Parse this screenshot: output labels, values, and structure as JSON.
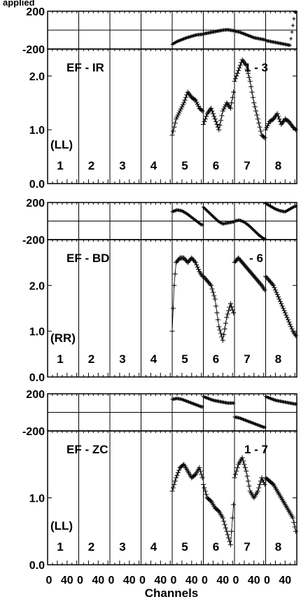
{
  "header": {
    "title_fragment": "applied"
  },
  "x_axis": {
    "label": "Channels",
    "tick_labels": [
      "0",
      "40",
      "0",
      "40",
      "0",
      "40",
      "0",
      "40",
      "0",
      "40",
      "0",
      "40",
      "0",
      "40",
      "0",
      "40"
    ]
  },
  "chart_data": [
    {
      "type": "scatter",
      "title": "EF - IR",
      "polarization": "(LL)",
      "annotation": "1 - 3",
      "spectral_windows": [
        "1",
        "2",
        "3",
        "4",
        "5",
        "6",
        "7",
        "8"
      ],
      "phase_ylim": [
        -200,
        200
      ],
      "phase_tick_labels": [
        "200",
        "-200"
      ],
      "amp_ylim": [
        0.0,
        2.5
      ],
      "amp_tick_labels": [
        "2.0",
        "1.0",
        "0.0"
      ],
      "phase_series": [
        {
          "window": 5,
          "x": [
            0,
            10,
            20,
            30,
            40,
            50,
            60
          ],
          "y": [
            -150,
            -120,
            -100,
            -80,
            -65,
            -50,
            -45
          ]
        },
        {
          "window": 6,
          "x": [
            0,
            10,
            20,
            30,
            40,
            50,
            60
          ],
          "y": [
            -40,
            -30,
            -20,
            -10,
            0,
            5,
            -5
          ]
        },
        {
          "window": 7,
          "x": [
            0,
            10,
            20,
            30,
            40,
            50,
            60
          ],
          "y": [
            -10,
            -20,
            -40,
            -60,
            -80,
            -90,
            -100
          ]
        },
        {
          "window": 8,
          "x": [
            0,
            10,
            20,
            30,
            40,
            50,
            60
          ],
          "y": [
            -110,
            -120,
            -130,
            -140,
            -150,
            -160,
            190
          ]
        }
      ],
      "amp_series": [
        {
          "window": 5,
          "x": [
            0,
            8,
            16,
            24,
            32,
            40,
            48,
            56,
            62
          ],
          "y": [
            0.9,
            1.2,
            1.35,
            1.5,
            1.7,
            1.6,
            1.55,
            1.4,
            1.35
          ]
        },
        {
          "window": 6,
          "x": [
            0,
            8,
            16,
            24,
            32,
            40,
            48,
            56,
            62
          ],
          "y": [
            1.1,
            1.3,
            1.4,
            1.2,
            1.0,
            1.35,
            1.5,
            1.4,
            1.7
          ]
        },
        {
          "window": 7,
          "x": [
            0,
            8,
            16,
            24,
            32,
            40,
            48,
            56,
            62
          ],
          "y": [
            1.9,
            2.1,
            2.3,
            2.2,
            1.9,
            1.5,
            1.2,
            0.9,
            0.85
          ]
        },
        {
          "window": 8,
          "x": [
            0,
            8,
            16,
            24,
            32,
            40,
            48,
            56,
            62
          ],
          "y": [
            1.0,
            1.15,
            1.2,
            1.3,
            1.1,
            1.2,
            1.15,
            1.05,
            1.0
          ]
        }
      ]
    },
    {
      "type": "scatter",
      "title": "EF - BD",
      "polarization": "(RR)",
      "annotation": "- 6",
      "spectral_windows": [
        "1",
        "2",
        "3",
        "4",
        "5",
        "6",
        "7",
        "8"
      ],
      "phase_ylim": [
        -200,
        200
      ],
      "phase_tick_labels": [
        "200",
        "-200"
      ],
      "amp_ylim": [
        0.0,
        3.0
      ],
      "amp_tick_labels": [
        "2.0",
        "1.0",
        "0.0"
      ],
      "phase_series": [
        {
          "window": 5,
          "x": [
            0,
            10,
            20,
            30,
            40,
            50,
            60
          ],
          "y": [
            100,
            120,
            110,
            80,
            40,
            0,
            -40
          ]
        },
        {
          "window": 6,
          "x": [
            0,
            10,
            20,
            30,
            40,
            50,
            60
          ],
          "y": [
            150,
            100,
            50,
            0,
            -30,
            -20,
            -10
          ]
        },
        {
          "window": 7,
          "x": [
            0,
            10,
            20,
            30,
            40,
            50,
            60
          ],
          "y": [
            0,
            10,
            -10,
            -50,
            -100,
            -150,
            -190
          ]
        },
        {
          "window": 8,
          "x": [
            0,
            10,
            20,
            30,
            40,
            50,
            60
          ],
          "y": [
            190,
            160,
            130,
            110,
            100,
            130,
            160
          ]
        }
      ],
      "amp_series": [
        {
          "window": 5,
          "x": [
            0,
            4,
            8,
            16,
            24,
            32,
            40,
            48,
            56,
            62
          ],
          "y": [
            1.0,
            2.0,
            2.5,
            2.6,
            2.6,
            2.5,
            2.6,
            2.5,
            2.3,
            2.2
          ]
        },
        {
          "window": 6,
          "x": [
            0,
            8,
            16,
            24,
            32,
            40,
            48,
            56,
            62
          ],
          "y": [
            2.2,
            2.1,
            2.0,
            1.7,
            1.1,
            0.8,
            1.3,
            1.6,
            1.4
          ]
        },
        {
          "window": 7,
          "x": [
            0,
            8,
            16,
            24,
            32,
            40,
            48,
            56,
            62
          ],
          "y": [
            2.5,
            2.6,
            2.5,
            2.4,
            2.3,
            2.2,
            2.1,
            2.0,
            1.9
          ]
        },
        {
          "window": 8,
          "x": [
            0,
            8,
            16,
            24,
            32,
            40,
            48,
            56,
            62
          ],
          "y": [
            2.2,
            2.1,
            2.0,
            1.8,
            1.6,
            1.4,
            1.2,
            1.0,
            0.9
          ]
        }
      ]
    },
    {
      "type": "scatter",
      "title": "EF - ZC",
      "polarization": "(LL)",
      "annotation": "1 - 7",
      "spectral_windows": [
        "1",
        "2",
        "3",
        "4",
        "5",
        "6",
        "7",
        "8"
      ],
      "phase_ylim": [
        -200,
        200
      ],
      "phase_tick_labels": [
        "200",
        "-200"
      ],
      "amp_ylim": [
        0.0,
        2.0
      ],
      "amp_tick_labels": [
        "1.0",
        "0.0"
      ],
      "phase_series": [
        {
          "window": 5,
          "x": [
            0,
            10,
            20,
            30,
            40,
            50,
            60
          ],
          "y": [
            140,
            150,
            140,
            120,
            100,
            80,
            60
          ]
        },
        {
          "window": 6,
          "x": [
            0,
            10,
            20,
            30,
            40,
            50,
            60
          ],
          "y": [
            170,
            150,
            130,
            120,
            110,
            100,
            100
          ]
        },
        {
          "window": 7,
          "x": [
            0,
            10,
            20,
            30,
            40,
            50,
            60
          ],
          "y": [
            -50,
            -60,
            -80,
            -100,
            -120,
            -140,
            -160
          ]
        },
        {
          "window": 8,
          "x": [
            0,
            10,
            20,
            30,
            40,
            50,
            60
          ],
          "y": [
            170,
            150,
            130,
            120,
            110,
            100,
            90
          ]
        }
      ],
      "amp_series": [
        {
          "window": 5,
          "x": [
            0,
            8,
            16,
            24,
            32,
            40,
            48,
            56,
            62
          ],
          "y": [
            1.1,
            1.3,
            1.45,
            1.5,
            1.4,
            1.3,
            1.35,
            1.45,
            1.3
          ]
        },
        {
          "window": 6,
          "x": [
            0,
            8,
            16,
            24,
            32,
            40,
            48,
            56,
            62
          ],
          "y": [
            1.2,
            1.0,
            0.95,
            0.85,
            0.8,
            0.7,
            0.5,
            0.3,
            0.9
          ]
        },
        {
          "window": 7,
          "x": [
            0,
            8,
            16,
            24,
            32,
            40,
            48,
            56,
            62
          ],
          "y": [
            1.3,
            1.5,
            1.6,
            1.4,
            1.1,
            1.0,
            1.1,
            1.3,
            1.2
          ]
        },
        {
          "window": 8,
          "x": [
            0,
            8,
            16,
            24,
            32,
            40,
            48,
            56,
            62
          ],
          "y": [
            1.3,
            1.25,
            1.2,
            1.1,
            1.0,
            0.9,
            0.8,
            0.7,
            0.5
          ]
        }
      ]
    }
  ]
}
